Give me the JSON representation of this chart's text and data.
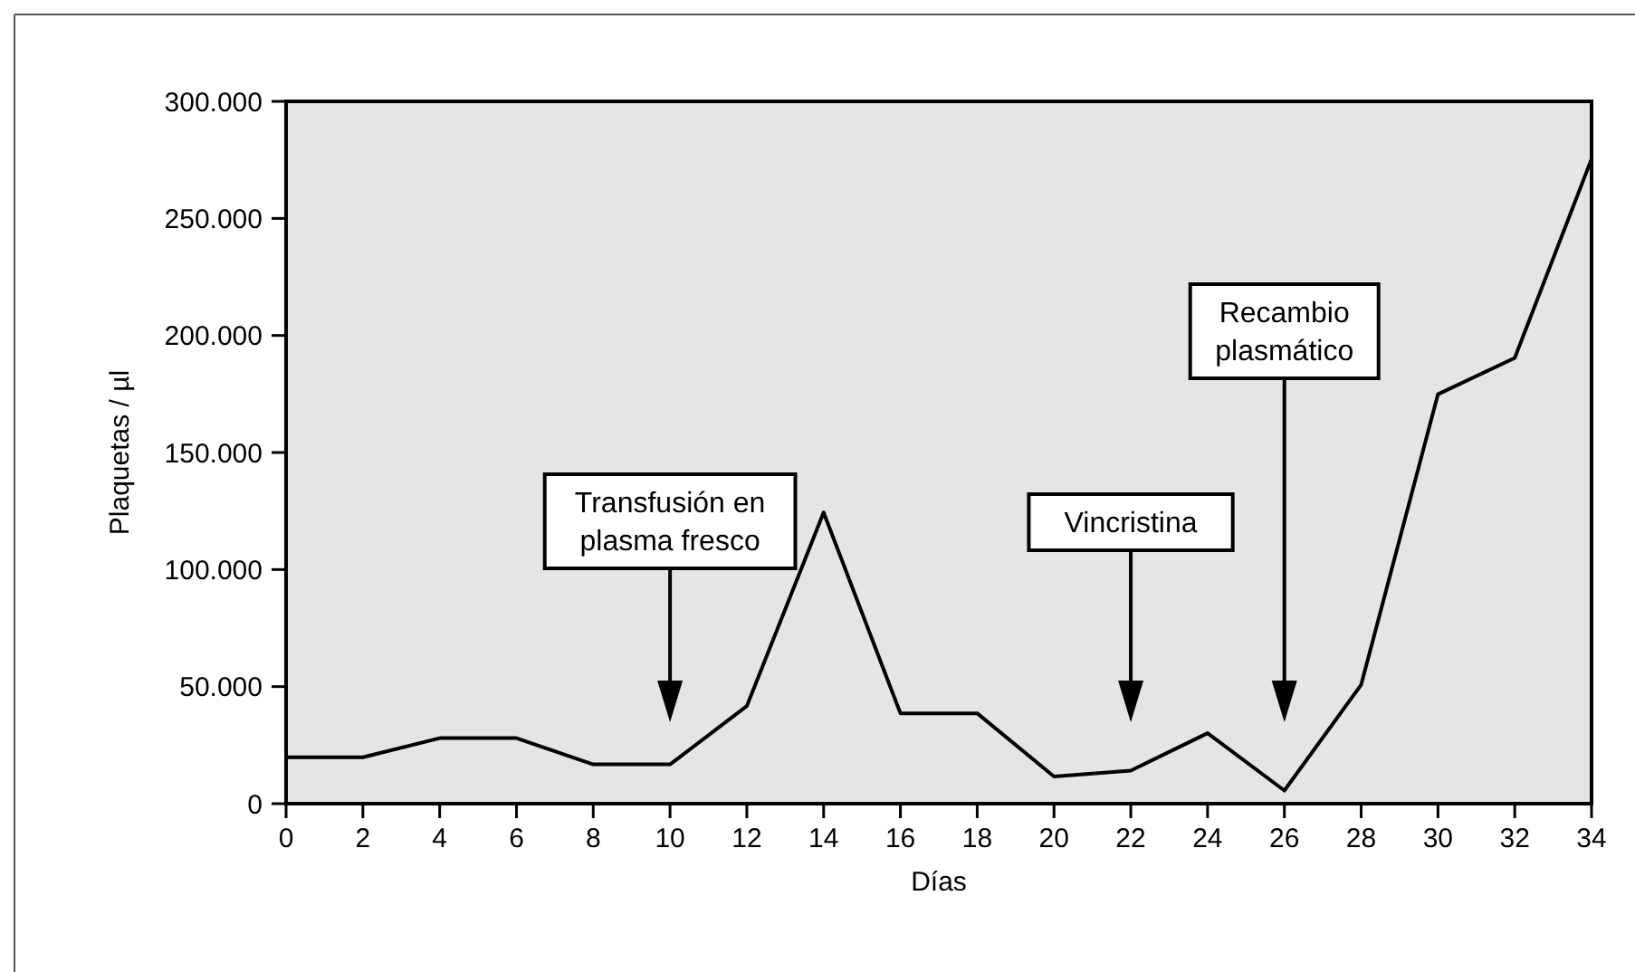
{
  "chart_data": {
    "type": "line",
    "xlabel": "Días",
    "ylabel": "Plaquetas / µl",
    "x": [
      0,
      2,
      4,
      6,
      8,
      10,
      12,
      14,
      16,
      18,
      20,
      22,
      24,
      26,
      28,
      30,
      32,
      34
    ],
    "series": [
      {
        "color": "#000000",
        "values": [
          19800,
          19800,
          28000,
          28000,
          16800,
          16800,
          41700,
          124400,
          38600,
          38600,
          11600,
          14100,
          30100,
          5600,
          50800,
          174900,
          190400,
          275400
        ]
      }
    ],
    "xlim": [
      0,
      34
    ],
    "xticks": [
      0,
      2,
      4,
      6,
      8,
      10,
      12,
      14,
      16,
      18,
      20,
      22,
      24,
      26,
      28,
      30,
      32,
      34
    ],
    "ylim": [
      0,
      300000
    ],
    "yticks": [
      0,
      {
        "value": 50000,
        "label": "50.000"
      },
      {
        "value": 100000,
        "label": "100.000"
      },
      {
        "value": 150000,
        "label": "150.000"
      },
      {
        "value": 200000,
        "label": "200.000"
      },
      {
        "value": 250000,
        "label": "250.000"
      },
      {
        "value": 300000,
        "label": "300.000"
      }
    ],
    "grid": false,
    "marker": "none",
    "line_style": "solid",
    "ref_lines": [
      {
        "axis": "x",
        "value": 10,
        "label": "Transfusión en\nplasma fresco"
      },
      {
        "axis": "x",
        "value": 22,
        "label": "Vincristina"
      },
      {
        "axis": "x",
        "value": 26,
        "label": "Recambio\nplasmático"
      }
    ]
  }
}
